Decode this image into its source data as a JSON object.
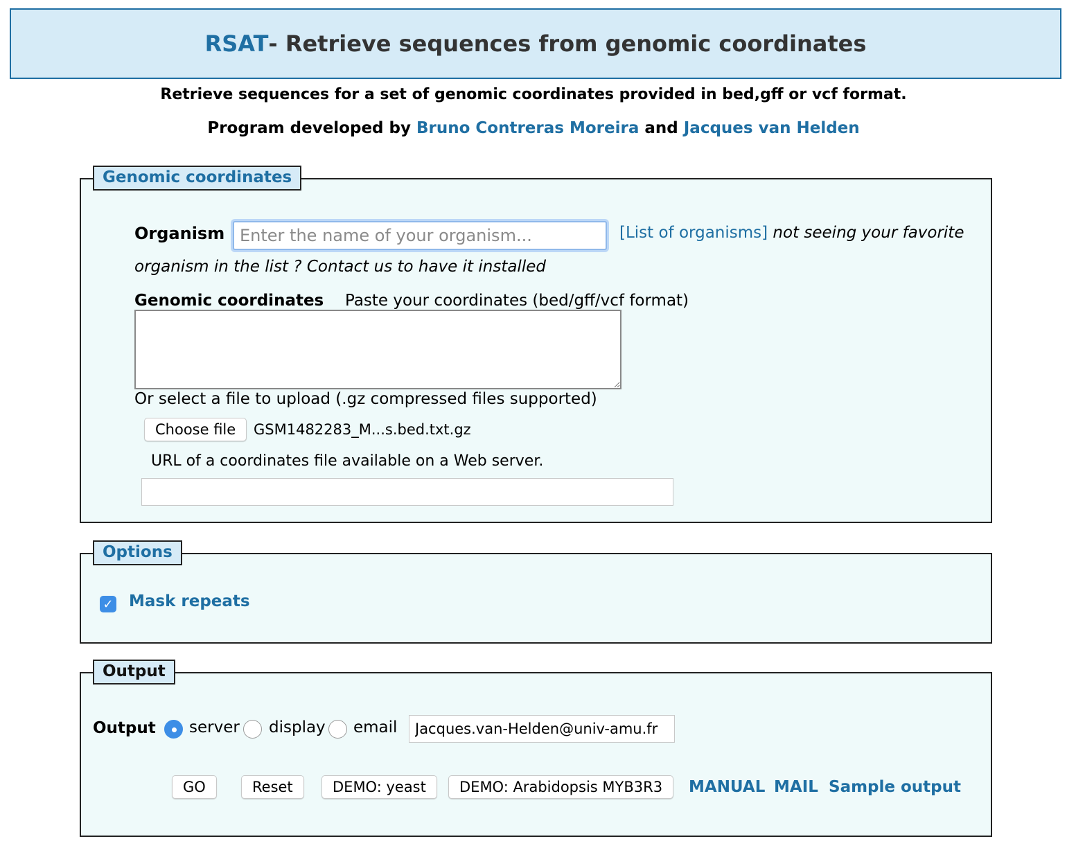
{
  "header": {
    "brand": "RSAT",
    "title": " - Retrieve sequences from genomic coordinates"
  },
  "subtitle": "Retrieve sequences for a set of genomic coordinates provided in bed,gff or vcf format.",
  "credits": {
    "prefix": "Program developed by ",
    "author1": "Bruno Contreras Moreira",
    "and": " and ",
    "author2": "Jacques van Helden"
  },
  "genomic": {
    "legend": "Genomic coordinates",
    "organism_label": "Organism",
    "organism_placeholder": "Enter the name of your organism...",
    "organism_value": "",
    "list_link": "[List of organisms]",
    "note_part1": " not seeing your favorite",
    "note_part2": "organism in the list ? Contact us to have it installed",
    "coords_label": "Genomic coordinates",
    "coords_hint": "Paste your coordinates (bed/gff/vcf format)",
    "coords_value": "",
    "upload_label": "Or select a file to upload (.gz compressed files supported)",
    "choose_file": "Choose file",
    "file_name": "GSM1482283_M...s.bed.txt.gz",
    "url_label": "URL of a coordinates file available on a Web server.",
    "url_value": ""
  },
  "options": {
    "legend": "Options",
    "mask_label": "Mask repeats",
    "mask_checked": true
  },
  "output": {
    "legend": "Output",
    "label": "Output",
    "choices": [
      "server",
      "display",
      "email"
    ],
    "selected": "server",
    "email_value": "Jacques.van-Helden@univ-amu.fr",
    "buttons": {
      "go": "GO",
      "reset": "Reset",
      "demo_yeast": "DEMO: yeast",
      "demo_arabidopsis": "DEMO: Arabidopsis MYB3R3"
    },
    "links": {
      "manual": "MANUAL",
      "mail": "MAIL",
      "sample": "Sample output"
    }
  },
  "colors": {
    "accent": "#1f6fa3",
    "header_bg": "#d6ebf7",
    "panel_bg": "#effafa",
    "control_blue": "#3d8ee6"
  }
}
